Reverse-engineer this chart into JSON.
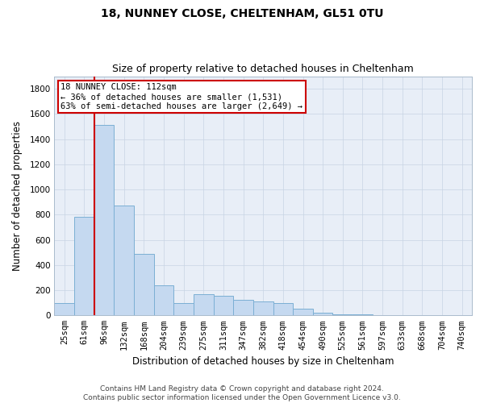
{
  "title1": "18, NUNNEY CLOSE, CHELTENHAM, GL51 0TU",
  "title2": "Size of property relative to detached houses in Cheltenham",
  "xlabel": "Distribution of detached houses by size in Cheltenham",
  "ylabel": "Number of detached properties",
  "categories": [
    "25sqm",
    "61sqm",
    "96sqm",
    "132sqm",
    "168sqm",
    "204sqm",
    "239sqm",
    "275sqm",
    "311sqm",
    "347sqm",
    "382sqm",
    "418sqm",
    "454sqm",
    "490sqm",
    "525sqm",
    "561sqm",
    "597sqm",
    "633sqm",
    "668sqm",
    "704sqm",
    "740sqm"
  ],
  "values": [
    100,
    780,
    1510,
    870,
    490,
    240,
    100,
    170,
    155,
    125,
    110,
    100,
    50,
    20,
    10,
    8,
    5,
    5,
    5,
    5,
    5
  ],
  "bar_color": "#c5d9f0",
  "bar_edge_color": "#7bafd4",
  "red_line_index": 2,
  "annotation_text": "18 NUNNEY CLOSE: 112sqm\n← 36% of detached houses are smaller (1,531)\n63% of semi-detached houses are larger (2,649) →",
  "annotation_box_color": "#ffffff",
  "annotation_box_edge": "#cc0000",
  "ylim": [
    0,
    1900
  ],
  "yticks": [
    0,
    200,
    400,
    600,
    800,
    1000,
    1200,
    1400,
    1600,
    1800
  ],
  "footer1": "Contains HM Land Registry data © Crown copyright and database right 2024.",
  "footer2": "Contains public sector information licensed under the Open Government Licence v3.0.",
  "bg_color": "#ffffff",
  "plot_bg_color": "#e8eef7",
  "grid_color": "#c8d4e4",
  "title1_fontsize": 10,
  "title2_fontsize": 9,
  "xlabel_fontsize": 8.5,
  "ylabel_fontsize": 8.5,
  "tick_fontsize": 7.5,
  "annot_fontsize": 7.5,
  "footer_fontsize": 6.5
}
